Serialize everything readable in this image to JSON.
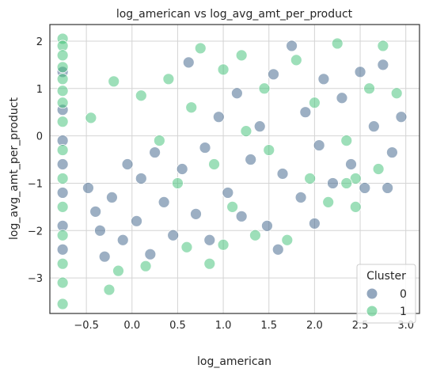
{
  "colors": {
    "cluster_0": "#3a5f88",
    "cluster_1": "#3cbf73",
    "grid": "#d4d4d4",
    "spine": "#333333",
    "legend_border": "#cccccc",
    "marker_edge": "#ffffff"
  },
  "chart_data": {
    "type": "scatter",
    "title": "log_american vs log_avg_amt_per_product",
    "xlabel": "log_american",
    "ylabel": "log_avg_amt_per_product",
    "xlim": [
      -0.9,
      3.15
    ],
    "ylim": [
      -3.75,
      2.35
    ],
    "xticks": [
      -0.5,
      0.0,
      0.5,
      1.0,
      1.5,
      2.0,
      2.5,
      3.0
    ],
    "xtick_labels": [
      "−0.5",
      "0.0",
      "0.5",
      "1.0",
      "1.5",
      "2.0",
      "2.5",
      "3.0"
    ],
    "yticks": [
      -3,
      -2,
      -1,
      0,
      1,
      2
    ],
    "ytick_labels": [
      "−3",
      "−2",
      "−1",
      "0",
      "1",
      "2"
    ],
    "grid": true,
    "legend": {
      "title": "Cluster",
      "placement": "lower-right",
      "entries": [
        {
          "label": "0",
          "color_key": "cluster_0"
        },
        {
          "label": "1",
          "color_key": "cluster_1"
        }
      ]
    },
    "series": [
      {
        "name": "0",
        "description": "main cloud: x from about -0.5 to 3.0; y centered near -1.6 at x=-0.4 rising to about 0.4 at x=2.8; spread about 0.6",
        "values": [
          [
            -0.76,
            1.35
          ],
          [
            -0.76,
            0.55
          ],
          [
            -0.76,
            -0.1
          ],
          [
            -0.76,
            -0.6
          ],
          [
            -0.76,
            -1.2
          ],
          [
            -0.76,
            -1.9
          ],
          [
            -0.76,
            -2.4
          ],
          [
            -0.48,
            -1.1
          ],
          [
            -0.4,
            -1.6
          ],
          [
            -0.35,
            -2.0
          ],
          [
            -0.3,
            -2.55
          ],
          [
            -0.22,
            -1.3
          ],
          [
            -0.1,
            -2.2
          ],
          [
            -0.05,
            -0.6
          ],
          [
            0.05,
            -1.8
          ],
          [
            0.1,
            -0.9
          ],
          [
            0.2,
            -2.5
          ],
          [
            0.25,
            -0.35
          ],
          [
            0.35,
            -1.4
          ],
          [
            0.45,
            -2.1
          ],
          [
            0.55,
            -0.7
          ],
          [
            0.62,
            1.55
          ],
          [
            0.7,
            -1.65
          ],
          [
            0.8,
            -0.25
          ],
          [
            0.85,
            -2.2
          ],
          [
            0.95,
            0.4
          ],
          [
            1.05,
            -1.2
          ],
          [
            1.15,
            0.9
          ],
          [
            1.2,
            -1.7
          ],
          [
            1.3,
            -0.5
          ],
          [
            1.4,
            0.2
          ],
          [
            1.48,
            -1.9
          ],
          [
            1.55,
            1.3
          ],
          [
            1.6,
            -2.4
          ],
          [
            1.65,
            -0.8
          ],
          [
            1.75,
            1.9
          ],
          [
            1.85,
            -1.3
          ],
          [
            1.9,
            0.5
          ],
          [
            2.0,
            -1.85
          ],
          [
            2.05,
            -0.2
          ],
          [
            2.1,
            1.2
          ],
          [
            2.2,
            -1.0
          ],
          [
            2.3,
            0.8
          ],
          [
            2.4,
            -0.6
          ],
          [
            2.5,
            1.35
          ],
          [
            2.55,
            -1.1
          ],
          [
            2.65,
            0.2
          ],
          [
            2.75,
            1.5
          ],
          [
            2.85,
            -0.35
          ],
          [
            2.95,
            0.4
          ],
          [
            2.8,
            -1.1
          ]
        ]
      },
      {
        "name": "1",
        "description": "overlapping cloud slightly higher; vertical strip of points at x about -0.76 spanning y -3.55 to 2.05",
        "values": [
          [
            -0.76,
            2.05
          ],
          [
            -0.76,
            1.9
          ],
          [
            -0.76,
            1.7
          ],
          [
            -0.76,
            1.45
          ],
          [
            -0.76,
            1.2
          ],
          [
            -0.76,
            0.95
          ],
          [
            -0.76,
            0.7
          ],
          [
            -0.76,
            0.3
          ],
          [
            -0.76,
            -0.3
          ],
          [
            -0.76,
            -0.9
          ],
          [
            -0.76,
            -1.5
          ],
          [
            -0.76,
            -2.1
          ],
          [
            -0.76,
            -2.7
          ],
          [
            -0.76,
            -3.1
          ],
          [
            -0.76,
            -3.55
          ],
          [
            -0.45,
            0.38
          ],
          [
            -0.2,
            1.15
          ],
          [
            -0.25,
            -3.25
          ],
          [
            -0.15,
            -2.85
          ],
          [
            0.1,
            0.85
          ],
          [
            0.15,
            -2.75
          ],
          [
            0.3,
            -0.1
          ],
          [
            0.4,
            1.2
          ],
          [
            0.5,
            -1.0
          ],
          [
            0.6,
            -2.35
          ],
          [
            0.65,
            0.6
          ],
          [
            0.75,
            1.85
          ],
          [
            0.85,
            -2.7
          ],
          [
            0.9,
            -0.6
          ],
          [
            1.0,
            1.4
          ],
          [
            1.1,
            -1.5
          ],
          [
            1.2,
            1.7
          ],
          [
            1.25,
            0.1
          ],
          [
            1.35,
            -2.1
          ],
          [
            1.45,
            1.0
          ],
          [
            1.5,
            -0.3
          ],
          [
            1.7,
            -2.2
          ],
          [
            1.8,
            1.6
          ],
          [
            1.95,
            -0.9
          ],
          [
            2.0,
            0.7
          ],
          [
            2.15,
            -1.4
          ],
          [
            2.25,
            1.95
          ],
          [
            2.35,
            -0.1
          ],
          [
            2.45,
            -0.9
          ],
          [
            2.6,
            1.0
          ],
          [
            2.7,
            -0.7
          ],
          [
            2.75,
            1.9
          ],
          [
            2.9,
            0.9
          ],
          [
            2.45,
            -1.5
          ],
          [
            2.35,
            -1.0
          ],
          [
            1.0,
            -2.3
          ]
        ]
      }
    ]
  }
}
